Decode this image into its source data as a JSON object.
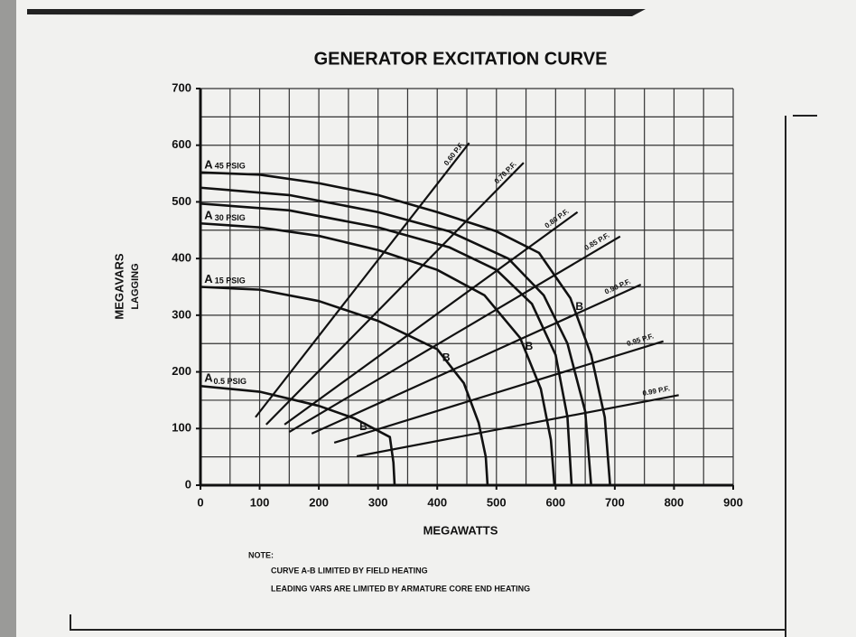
{
  "chart_data": {
    "type": "line",
    "title": "GENERATOR EXCITATION CURVE",
    "x_label": "MEGAWATTS",
    "y_label": "MEGAVARS",
    "y_label_sub": "LAGGING",
    "xlim": [
      0,
      900
    ],
    "ylim": [
      0,
      700
    ],
    "xticks": [
      0,
      100,
      200,
      300,
      400,
      500,
      600,
      700,
      800,
      900
    ],
    "yticks": [
      0,
      100,
      200,
      300,
      400,
      500,
      600,
      700
    ],
    "grid": true,
    "grid_step": 50,
    "color": "#111111",
    "series": [
      {
        "name": "0.5 PSIG",
        "start_label": "A",
        "end_label": "B",
        "x": [
          0,
          100,
          200,
          260,
          320,
          326,
          328
        ],
        "y": [
          175,
          165,
          140,
          118,
          85,
          40,
          0
        ]
      },
      {
        "name": "15 PSIG",
        "start_label": "A",
        "end_label": "B",
        "x": [
          0,
          100,
          200,
          300,
          400,
          445,
          470,
          482,
          485
        ],
        "y": [
          350,
          345,
          325,
          290,
          240,
          180,
          110,
          50,
          0
        ]
      },
      {
        "name": "30 PSIG",
        "start_label": "A",
        "end_label": "B",
        "x": [
          0,
          100,
          200,
          300,
          400,
          480,
          540,
          575,
          592,
          598
        ],
        "y": [
          462,
          455,
          440,
          415,
          380,
          335,
          260,
          170,
          80,
          0
        ]
      },
      {
        "name": null,
        "x": [
          0,
          150,
          300,
          420,
          500,
          560,
          600,
          620,
          627
        ],
        "y": [
          497,
          485,
          455,
          420,
          380,
          320,
          230,
          120,
          0
        ]
      },
      {
        "name": null,
        "x": [
          0,
          150,
          300,
          420,
          520,
          580,
          620,
          650,
          660
        ],
        "y": [
          525,
          512,
          482,
          448,
          400,
          335,
          250,
          130,
          0
        ]
      },
      {
        "name": "45 PSIG",
        "start_label": "A",
        "end_label": "B",
        "x": [
          0,
          100,
          200,
          300,
          400,
          500,
          572,
          625,
          660,
          683,
          692
        ],
        "y": [
          552,
          548,
          533,
          512,
          482,
          448,
          410,
          330,
          230,
          120,
          0
        ]
      }
    ],
    "pf_lines": [
      {
        "name": "0.60 P.F.",
        "x": [
          93,
          454
        ],
        "y": [
          120,
          604
        ]
      },
      {
        "name": "0.70 P.F.",
        "x": [
          111,
          546
        ],
        "y": [
          107,
          569
        ]
      },
      {
        "name": "0.80 P.F.",
        "x": [
          142,
          637
        ],
        "y": [
          107,
          482
        ]
      },
      {
        "name": "0.85 P.F.",
        "x": [
          150,
          709
        ],
        "y": [
          94,
          439
        ]
      },
      {
        "name": "0.90 P.F.",
        "x": [
          188,
          744
        ],
        "y": [
          91,
          354
        ]
      },
      {
        "name": "0.95 P.F.",
        "x": [
          226,
          782
        ],
        "y": [
          75,
          254
        ]
      },
      {
        "name": "0.99 P.F.",
        "x": [
          264,
          808
        ],
        "y": [
          51,
          159
        ]
      }
    ]
  },
  "notes": {
    "heading": "NOTE:",
    "lines": [
      "CURVE A-B LIMITED BY FIELD HEATING",
      "LEADING VARS ARE LIMITED BY ARMATURE CORE END HEATING"
    ]
  }
}
